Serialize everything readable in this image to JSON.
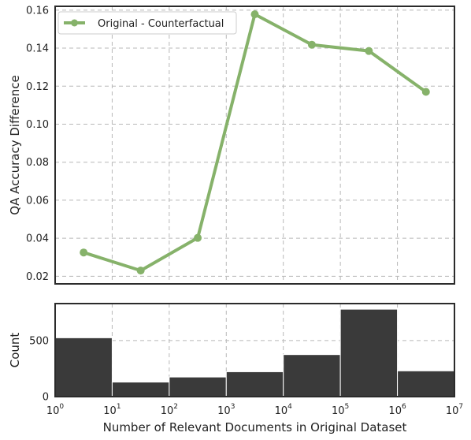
{
  "chart_data": [
    {
      "type": "line",
      "ylabel": "QA Accuracy Difference",
      "xscale": "log",
      "xlim": [
        1,
        10000000
      ],
      "ylim": [
        0.016,
        0.162
      ],
      "yticks": [
        0.02,
        0.04,
        0.06,
        0.08,
        0.1,
        0.12,
        0.14,
        0.16
      ],
      "ytick_labels": [
        "0.02",
        "0.04",
        "0.06",
        "0.08",
        "0.10",
        "0.12",
        "0.14",
        "0.16"
      ],
      "grid": true,
      "legend_position": "top-left",
      "series": [
        {
          "name": "Original - Counterfactual",
          "color": "#86b26a",
          "x": [
            3.16,
            31.6,
            316,
            3162,
            31623,
            316228,
            3162278
          ],
          "y": [
            0.0325,
            0.023,
            0.0402,
            0.1578,
            0.1418,
            0.1385,
            0.117
          ]
        }
      ]
    },
    {
      "type": "bar",
      "ylabel": "Count",
      "xlabel": "Number of Relevant Documents in Original Dataset",
      "xscale": "log",
      "xlim": [
        1,
        10000000
      ],
      "ylim": [
        0,
        830
      ],
      "yticks": [
        0,
        500
      ],
      "ytick_labels": [
        "0",
        "500"
      ],
      "xticks": [
        1,
        10,
        100,
        1000,
        10000,
        100000,
        1000000,
        10000000
      ],
      "xtick_labels": [
        {
          "base": "10",
          "exp": "0"
        },
        {
          "base": "10",
          "exp": "1"
        },
        {
          "base": "10",
          "exp": "2"
        },
        {
          "base": "10",
          "exp": "3"
        },
        {
          "base": "10",
          "exp": "4"
        },
        {
          "base": "10",
          "exp": "5"
        },
        {
          "base": "10",
          "exp": "6"
        },
        {
          "base": "10",
          "exp": "7"
        }
      ],
      "grid": true,
      "bar_color": "#3a3a3a",
      "bins": [
        {
          "from": 1,
          "to": 10,
          "count": 525
        },
        {
          "from": 10,
          "to": 100,
          "count": 130
        },
        {
          "from": 100,
          "to": 1000,
          "count": 175
        },
        {
          "from": 1000,
          "to": 10000,
          "count": 222
        },
        {
          "from": 10000,
          "to": 100000,
          "count": 375
        },
        {
          "from": 100000,
          "to": 1000000,
          "count": 780
        },
        {
          "from": 1000000,
          "to": 10000000,
          "count": 230
        }
      ]
    }
  ]
}
